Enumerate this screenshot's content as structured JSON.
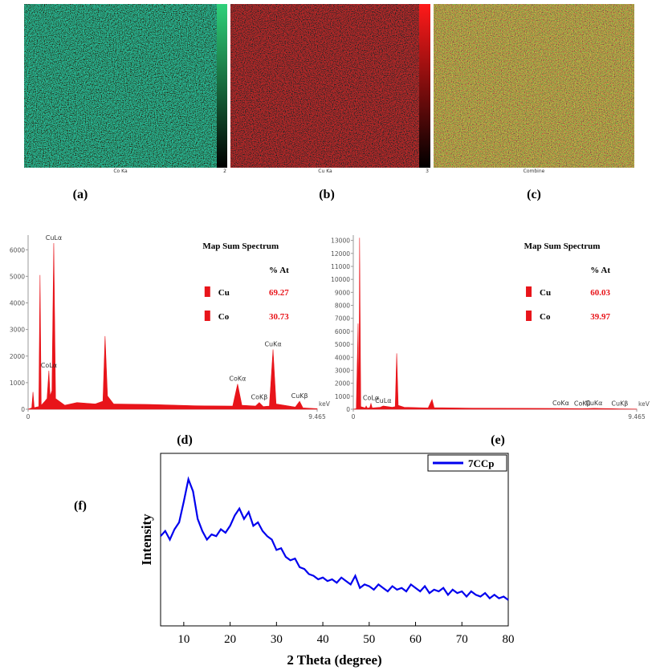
{
  "images": [
    {
      "label": "(a)",
      "caption": "Co Ka",
      "scale_max": 2
    },
    {
      "label": "(b)",
      "caption": "Cu Ka",
      "scale_max": 3
    },
    {
      "label": "(c)",
      "caption": "Combine"
    }
  ],
  "chart_data": [
    {
      "type": "area",
      "label": "(d)",
      "x_unit": "keV",
      "color": "#e8141a",
      "xlim": [
        0,
        9.465
      ],
      "xticks": [
        0,
        9.465
      ],
      "ylim": [
        0,
        6400
      ],
      "yticks": [
        0,
        1000,
        2000,
        3000,
        4000,
        5000,
        6000
      ],
      "x": [
        0,
        0.12,
        0.16,
        0.2,
        0.35,
        0.39,
        0.43,
        0.55,
        0.62,
        0.68,
        0.72,
        0.78,
        0.84,
        0.9,
        1.2,
        1.6,
        2.2,
        2.45,
        2.52,
        2.6,
        2.8,
        4,
        5.5,
        6.7,
        6.86,
        7.0,
        7.45,
        7.57,
        7.7,
        7.9,
        8.02,
        8.12,
        8.75,
        8.89,
        9.0,
        9.465
      ],
      "values": [
        0,
        50,
        650,
        60,
        100,
        5050,
        150,
        300,
        400,
        1450,
        500,
        700,
        6250,
        400,
        150,
        250,
        200,
        300,
        2750,
        500,
        200,
        180,
        130,
        120,
        950,
        150,
        120,
        250,
        100,
        120,
        2250,
        200,
        80,
        300,
        50,
        20
      ],
      "annotations": [
        {
          "text": "CuLα",
          "x": 0.84
        },
        {
          "text": "CoLα",
          "x": 0.68
        },
        {
          "text": "CoKα",
          "x": 6.86
        },
        {
          "text": "CoKβ",
          "x": 7.57
        },
        {
          "text": "CuKα",
          "x": 8.02
        },
        {
          "text": "CuKβ",
          "x": 8.89
        }
      ],
      "composition": {
        "title": "Map Sum Spectrum",
        "header": "% At",
        "rows": [
          {
            "name": "Cu",
            "value": 69.27
          },
          {
            "name": "Co",
            "value": 30.73
          }
        ]
      }
    },
    {
      "type": "area",
      "label": "(e)",
      "x_unit": "keV",
      "color": "#e8141a",
      "xlim": [
        0,
        9.465
      ],
      "xticks": [
        0,
        9.465
      ],
      "ylim": [
        0,
        13100
      ],
      "yticks": [
        0,
        1000,
        2000,
        3000,
        4000,
        5000,
        6000,
        7000,
        8000,
        9000,
        10000,
        11000,
        12000,
        13000
      ],
      "x": [
        0,
        0.1,
        0.16,
        0.19,
        0.21,
        0.25,
        0.4,
        0.43,
        0.47,
        0.55,
        0.59,
        0.63,
        0.9,
        1.0,
        1.3,
        1.4,
        1.45,
        1.5,
        1.7,
        2.5,
        2.63,
        2.7,
        4,
        6.93,
        7.65,
        8.04,
        8.9,
        9.465
      ],
      "values": [
        0,
        40,
        6600,
        300,
        13200,
        200,
        100,
        250,
        80,
        120,
        450,
        100,
        150,
        250,
        150,
        200,
        4300,
        300,
        150,
        100,
        750,
        120,
        80,
        60,
        40,
        70,
        30,
        10
      ],
      "annotations": [
        {
          "text": "CoLα",
          "x": 0.59
        },
        {
          "text": "CuLα",
          "x": 1.0
        },
        {
          "text": "CoKα",
          "x": 6.93
        },
        {
          "text": "CoKβ",
          "x": 7.65
        },
        {
          "text": "CuKα",
          "x": 8.04
        },
        {
          "text": "CuKβ",
          "x": 8.9
        }
      ],
      "composition": {
        "title": "Map Sum Spectrum",
        "header": "% At",
        "rows": [
          {
            "name": "Cu",
            "value": 60.03
          },
          {
            "name": "Co",
            "value": 39.97
          }
        ]
      }
    },
    {
      "type": "line",
      "label": "(f)",
      "xlabel": "2 Theta (degree)",
      "ylabel": "Intensity",
      "xlim": [
        5,
        80
      ],
      "xticks": [
        10,
        20,
        30,
        40,
        50,
        60,
        70,
        80
      ],
      "ylim": [
        0,
        100
      ],
      "legend": "upper right",
      "series": [
        {
          "name": "7CCp",
          "color": "#0000ee",
          "x": [
            5,
            6,
            7,
            8,
            9,
            10,
            11,
            12,
            13,
            14,
            15,
            16,
            17,
            18,
            19,
            20,
            21,
            22,
            23,
            24,
            25,
            26,
            27,
            28,
            29,
            30,
            31,
            32,
            33,
            34,
            35,
            36,
            37,
            38,
            39,
            40,
            41,
            42,
            43,
            44,
            45,
            46,
            47,
            48,
            49,
            50,
            51,
            52,
            53,
            54,
            55,
            56,
            57,
            58,
            59,
            60,
            61,
            62,
            63,
            64,
            65,
            66,
            67,
            68,
            69,
            70,
            71,
            72,
            73,
            74,
            75,
            76,
            77,
            78,
            79,
            80
          ],
          "values": [
            52,
            55,
            50,
            56,
            60,
            72,
            85,
            78,
            62,
            55,
            50,
            53,
            52,
            56,
            54,
            58,
            64,
            68,
            62,
            66,
            58,
            60,
            55,
            52,
            50,
            44,
            45,
            40,
            38,
            39,
            34,
            33,
            30,
            29,
            27,
            28,
            26,
            27,
            25,
            28,
            26,
            24,
            29,
            22,
            24,
            23,
            21,
            24,
            22,
            20,
            23,
            21,
            22,
            20,
            24,
            22,
            20,
            23,
            19,
            21,
            20,
            22,
            18,
            21,
            19,
            20,
            17,
            20,
            18,
            17,
            19,
            16,
            18,
            16,
            17,
            15
          ]
        }
      ]
    }
  ]
}
